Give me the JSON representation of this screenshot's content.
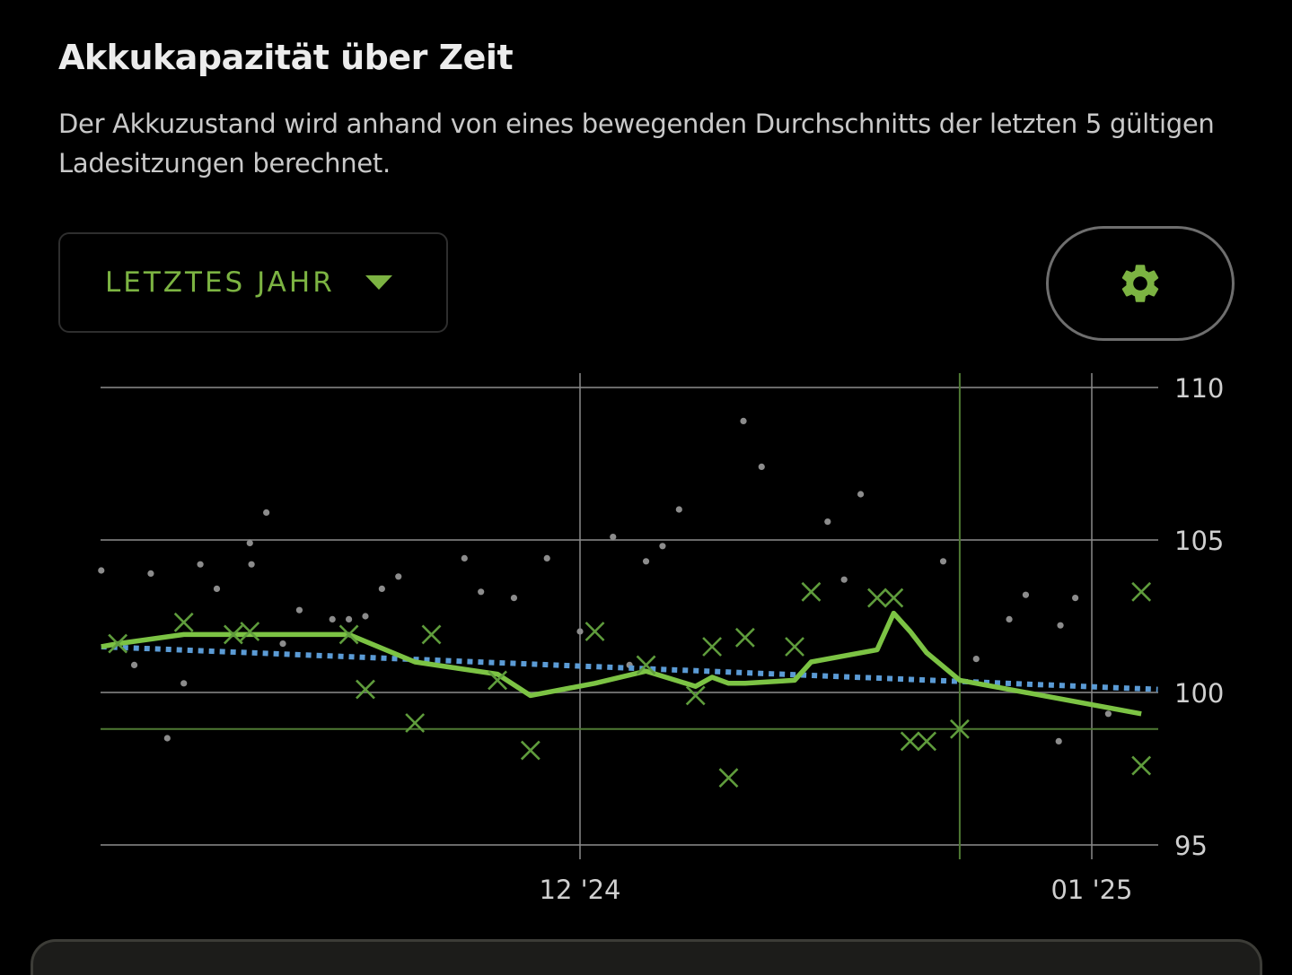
{
  "header": {
    "title": "Akkukapazität über Zeit",
    "description": "Der Akkuzustand wird anhand von eines bewegenden Durchschnitts der letzten 5 gültigen Ladesitzungen berechnet."
  },
  "controls": {
    "range_dropdown": {
      "selected": "LETZTES JAHR",
      "icon": "caret-down-icon"
    },
    "settings_button": {
      "icon": "gear-icon"
    }
  },
  "colors": {
    "accent": "#7cb342",
    "moving_average": "#7cc344",
    "session_marker": "#5f9c3c",
    "trend": "#5b9bd5",
    "raw_dot": "#8c8c8c",
    "grid": "#6a6a6a",
    "reference": "#4f7a34"
  },
  "chart_data": {
    "type": "scatter",
    "title": "Akkukapazität über Zeit",
    "xlabel": "",
    "ylabel": "",
    "x_unit": "days relative to 1 Dec 2024",
    "xlim": [
      -29,
      35
    ],
    "ylim": [
      95,
      110
    ],
    "yticks": [
      95,
      100,
      105,
      110
    ],
    "ytick_labels": [
      "95",
      "100",
      "105",
      "110"
    ],
    "xticks": [
      0,
      31
    ],
    "xtick_labels": [
      "12 '24",
      "01 '25"
    ],
    "grid": true,
    "reference_lines": {
      "y": 98.8,
      "x": 23
    },
    "series": [
      {
        "name": "raw_measurements",
        "kind": "dots",
        "points": [
          [
            -29.0,
            104.0
          ],
          [
            -27.0,
            100.9
          ],
          [
            -26.0,
            103.9
          ],
          [
            -25.0,
            98.5
          ],
          [
            -24.0,
            100.3
          ],
          [
            -23.0,
            104.2
          ],
          [
            -22.0,
            103.4
          ],
          [
            -20.0,
            104.9
          ],
          [
            -19.9,
            104.2
          ],
          [
            -19.0,
            105.9
          ],
          [
            -18.0,
            101.6
          ],
          [
            -17.0,
            102.7
          ],
          [
            -15.0,
            102.4
          ],
          [
            -14.0,
            102.4
          ],
          [
            -13.0,
            102.5
          ],
          [
            -12.0,
            103.4
          ],
          [
            -11.0,
            103.8
          ],
          [
            -7.0,
            104.4
          ],
          [
            -6.0,
            103.3
          ],
          [
            -4.0,
            103.1
          ],
          [
            -2.0,
            104.4
          ],
          [
            0.0,
            102.0
          ],
          [
            2.0,
            105.1
          ],
          [
            3.0,
            100.9
          ],
          [
            4.0,
            104.3
          ],
          [
            5.0,
            104.8
          ],
          [
            6.0,
            106.0
          ],
          [
            9.9,
            108.9
          ],
          [
            11.0,
            107.4
          ],
          [
            15.0,
            105.6
          ],
          [
            16.0,
            103.7
          ],
          [
            17.0,
            106.5
          ],
          [
            22.0,
            104.3
          ],
          [
            24.0,
            101.1
          ],
          [
            26.0,
            102.4
          ],
          [
            27.0,
            103.2
          ],
          [
            29.0,
            98.4
          ],
          [
            29.1,
            102.2
          ],
          [
            30.0,
            103.1
          ],
          [
            32.0,
            99.3
          ]
        ]
      },
      {
        "name": "valid_sessions",
        "kind": "x-markers",
        "points": [
          [
            -28.0,
            101.6
          ],
          [
            -24.0,
            102.3
          ],
          [
            -21.0,
            101.9
          ],
          [
            -20.0,
            102.0
          ],
          [
            -14.0,
            101.9
          ],
          [
            -13.0,
            100.1
          ],
          [
            -10.0,
            99.0
          ],
          [
            -9.0,
            101.9
          ],
          [
            -5.0,
            100.4
          ],
          [
            -3.0,
            98.1
          ],
          [
            0.9,
            102.0
          ],
          [
            4.0,
            100.9
          ],
          [
            7.0,
            99.9
          ],
          [
            8.0,
            101.5
          ],
          [
            9.0,
            97.2
          ],
          [
            10.0,
            101.8
          ],
          [
            13.0,
            101.5
          ],
          [
            14.0,
            103.3
          ],
          [
            18.0,
            103.1
          ],
          [
            19.0,
            103.1
          ],
          [
            20.0,
            98.4
          ],
          [
            21.0,
            98.4
          ],
          [
            23.0,
            98.8
          ],
          [
            34.0,
            103.3
          ],
          [
            34.0,
            97.6
          ]
        ]
      },
      {
        "name": "moving_average",
        "kind": "line",
        "points": [
          [
            -29.0,
            101.5
          ],
          [
            -28.0,
            101.6
          ],
          [
            -24.0,
            101.9
          ],
          [
            -21.0,
            101.9
          ],
          [
            -14.0,
            101.9
          ],
          [
            -10.0,
            101.0
          ],
          [
            -5.0,
            100.6
          ],
          [
            -3.0,
            99.9
          ],
          [
            0.9,
            100.3
          ],
          [
            4.0,
            100.7
          ],
          [
            7.0,
            100.2
          ],
          [
            8.0,
            100.5
          ],
          [
            9.0,
            100.3
          ],
          [
            10.0,
            100.3
          ],
          [
            13.0,
            100.4
          ],
          [
            14.0,
            101.0
          ],
          [
            18.0,
            101.4
          ],
          [
            19.0,
            102.6
          ],
          [
            20.0,
            102.0
          ],
          [
            21.0,
            101.3
          ],
          [
            23.0,
            100.4
          ],
          [
            34.0,
            99.3
          ]
        ]
      },
      {
        "name": "trend",
        "kind": "dotted-line",
        "points": [
          [
            -29.0,
            101.5
          ],
          [
            35.0,
            100.1
          ]
        ]
      }
    ]
  }
}
